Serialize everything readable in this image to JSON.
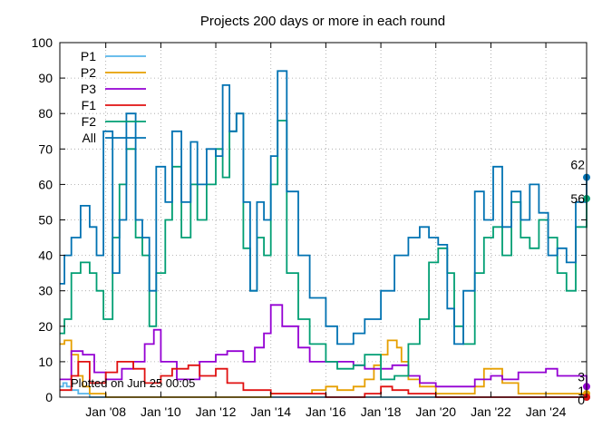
{
  "chart_data": {
    "type": "line",
    "title": "Projects 200 days or more in each round",
    "xlabel": "",
    "ylabel": "",
    "xlim": [
      "2006-05-01",
      "2025-06-25"
    ],
    "ylim": [
      0,
      100
    ],
    "y_ticks": [
      0,
      10,
      20,
      30,
      40,
      50,
      60,
      70,
      80,
      90,
      100
    ],
    "x_ticks": [
      {
        "date": "2008-01-01",
        "label": "Jan '08"
      },
      {
        "date": "2010-01-01",
        "label": "Jan '10"
      },
      {
        "date": "2012-01-01",
        "label": "Jan '12"
      },
      {
        "date": "2014-01-01",
        "label": "Jan '14"
      },
      {
        "date": "2016-01-01",
        "label": "Jan '16"
      },
      {
        "date": "2018-01-01",
        "label": "Jan '18"
      },
      {
        "date": "2020-01-01",
        "label": "Jan '20"
      },
      {
        "date": "2022-01-01",
        "label": "Jan '22"
      },
      {
        "date": "2024-01-01",
        "label": "Jan '24"
      }
    ],
    "grid": true,
    "legend_position": "top-left",
    "annotation": "Plotted on Jun 25 00:05",
    "series": [
      {
        "name": "P1",
        "color": "#56b4e9",
        "end_label": "",
        "x": [
          "2006-05-01",
          "2006-06-15",
          "2006-08-01",
          "2006-10-01",
          "2007-01-01",
          "2007-06-01",
          "2008-01-01",
          "2010-01-01",
          "2012-01-01",
          "2014-01-01",
          "2016-01-01",
          "2018-01-01",
          "2020-01-01",
          "2022-01-01",
          "2024-01-01",
          "2025-06-25"
        ],
        "y": [
          3,
          4,
          3,
          2,
          1,
          0,
          0,
          0,
          0,
          0,
          0,
          0,
          0,
          0,
          0,
          0
        ]
      },
      {
        "name": "P2",
        "color": "#e69f00",
        "end_label": "1",
        "x": [
          "2006-05-01",
          "2006-07-01",
          "2006-10-01",
          "2007-01-01",
          "2007-03-01",
          "2007-06-01",
          "2008-01-01",
          "2010-01-01",
          "2012-01-01",
          "2014-01-01",
          "2015-01-01",
          "2015-07-01",
          "2016-01-01",
          "2016-06-01",
          "2017-01-01",
          "2017-06-01",
          "2017-10-01",
          "2018-01-01",
          "2018-04-01",
          "2018-08-01",
          "2018-10-01",
          "2019-01-01",
          "2019-06-01",
          "2020-01-01",
          "2021-01-01",
          "2021-06-01",
          "2021-10-01",
          "2022-01-01",
          "2022-06-01",
          "2023-01-01",
          "2024-01-01",
          "2024-06-01",
          "2025-06-25"
        ],
        "y": [
          15,
          16,
          12,
          6,
          3,
          1,
          0,
          0,
          0,
          1,
          1,
          2,
          3,
          2,
          3,
          5,
          9,
          12,
          16,
          14,
          10,
          5,
          3,
          1,
          1,
          3,
          8,
          8,
          4,
          1,
          1,
          1,
          1
        ]
      },
      {
        "name": "P3",
        "color": "#9400d3",
        "end_label": "3",
        "x": [
          "2006-05-01",
          "2006-10-01",
          "2007-03-01",
          "2007-08-01",
          "2008-01-01",
          "2008-08-01",
          "2009-01-01",
          "2009-06-01",
          "2009-10-01",
          "2010-01-01",
          "2010-08-01",
          "2011-01-01",
          "2011-06-01",
          "2012-01-01",
          "2012-06-01",
          "2013-01-01",
          "2013-06-01",
          "2013-10-01",
          "2014-01-01",
          "2014-06-01",
          "2015-01-01",
          "2015-06-01",
          "2016-01-01",
          "2016-08-01",
          "2017-01-01",
          "2017-06-01",
          "2018-01-01",
          "2018-06-01",
          "2019-01-01",
          "2019-06-01",
          "2020-01-01",
          "2021-01-01",
          "2021-06-01",
          "2022-01-01",
          "2022-06-01",
          "2023-01-01",
          "2023-06-01",
          "2024-01-01",
          "2024-06-01",
          "2025-06-25"
        ],
        "y": [
          5,
          13,
          12,
          7,
          5,
          8,
          10,
          15,
          19,
          10,
          5,
          5,
          10,
          12,
          13,
          10,
          14,
          18,
          26,
          20,
          14,
          10,
          10,
          10,
          9,
          8,
          8,
          9,
          6,
          4,
          3,
          3,
          5,
          6,
          5,
          7,
          7,
          8,
          6,
          3
        ]
      },
      {
        "name": "F1",
        "color": "#e01010",
        "end_label": "0",
        "x": [
          "2006-05-01",
          "2006-10-01",
          "2007-01-01",
          "2007-06-01",
          "2008-01-01",
          "2008-06-01",
          "2009-01-01",
          "2009-06-01",
          "2010-01-01",
          "2010-06-01",
          "2011-01-01",
          "2011-06-01",
          "2012-01-01",
          "2012-06-01",
          "2013-01-01",
          "2014-01-01",
          "2016-01-01",
          "2017-06-01",
          "2018-01-01",
          "2018-06-01",
          "2019-01-01",
          "2019-06-01",
          "2020-01-01",
          "2021-01-01",
          "2022-01-01",
          "2023-01-01",
          "2024-01-01",
          "2024-06-01",
          "2025-06-25"
        ],
        "y": [
          2,
          6,
          10,
          4,
          7,
          10,
          8,
          4,
          6,
          8,
          9,
          6,
          8,
          4,
          2,
          1,
          0,
          1,
          3,
          2,
          1,
          1,
          0,
          0,
          0,
          0,
          0,
          0,
          0
        ]
      },
      {
        "name": "F2",
        "color": "#009e73",
        "end_label": "56",
        "x": [
          "2006-05-01",
          "2006-07-01",
          "2006-10-01",
          "2007-02-01",
          "2007-06-01",
          "2007-09-01",
          "2007-12-01",
          "2008-04-01",
          "2008-07-01",
          "2008-10-01",
          "2009-02-01",
          "2009-05-01",
          "2009-08-01",
          "2009-11-01",
          "2010-03-01",
          "2010-06-01",
          "2010-10-01",
          "2011-02-01",
          "2011-05-01",
          "2011-09-01",
          "2012-01-01",
          "2012-04-01",
          "2012-07-01",
          "2012-10-01",
          "2013-01-01",
          "2013-04-01",
          "2013-07-01",
          "2013-10-01",
          "2014-01-01",
          "2014-04-01",
          "2014-08-01",
          "2015-01-01",
          "2015-06-01",
          "2016-01-01",
          "2016-06-01",
          "2017-01-01",
          "2017-06-01",
          "2018-01-01",
          "2018-07-01",
          "2019-01-01",
          "2019-06-01",
          "2019-10-01",
          "2020-02-01",
          "2020-06-01",
          "2020-09-01",
          "2021-01-01",
          "2021-06-01",
          "2021-10-01",
          "2022-02-01",
          "2022-06-01",
          "2022-10-01",
          "2023-02-01",
          "2023-06-01",
          "2023-10-01",
          "2024-02-01",
          "2024-06-01",
          "2024-10-01",
          "2025-02-01",
          "2025-06-25"
        ],
        "y": [
          18,
          22,
          35,
          38,
          35,
          30,
          22,
          45,
          60,
          70,
          45,
          40,
          20,
          35,
          50,
          65,
          45,
          60,
          50,
          60,
          70,
          62,
          75,
          80,
          42,
          30,
          45,
          40,
          60,
          78,
          35,
          22,
          15,
          10,
          8,
          9,
          12,
          5,
          6,
          15,
          22,
          38,
          42,
          35,
          20,
          15,
          35,
          45,
          48,
          40,
          55,
          45,
          42,
          50,
          45,
          35,
          30,
          48,
          56
        ]
      },
      {
        "name": "All",
        "color": "#0072b2",
        "end_label": "62",
        "x": [
          "2006-05-01",
          "2006-07-01",
          "2006-10-01",
          "2007-02-01",
          "2007-06-01",
          "2007-09-01",
          "2007-12-01",
          "2008-04-01",
          "2008-07-01",
          "2008-10-01",
          "2009-02-01",
          "2009-05-01",
          "2009-08-01",
          "2009-11-01",
          "2010-03-01",
          "2010-06-01",
          "2010-10-01",
          "2011-02-01",
          "2011-05-01",
          "2011-09-01",
          "2012-01-01",
          "2012-04-01",
          "2012-07-01",
          "2012-10-01",
          "2013-01-01",
          "2013-04-01",
          "2013-07-01",
          "2013-10-01",
          "2014-01-01",
          "2014-04-01",
          "2014-08-01",
          "2015-01-01",
          "2015-06-01",
          "2016-01-01",
          "2016-06-01",
          "2017-01-01",
          "2017-06-01",
          "2018-01-01",
          "2018-07-01",
          "2019-01-01",
          "2019-06-01",
          "2019-10-01",
          "2020-02-01",
          "2020-06-01",
          "2020-09-01",
          "2021-01-01",
          "2021-06-01",
          "2021-10-01",
          "2022-02-01",
          "2022-06-01",
          "2022-10-01",
          "2023-02-01",
          "2023-06-01",
          "2023-10-01",
          "2024-02-01",
          "2024-06-01",
          "2024-10-01",
          "2025-02-01",
          "2025-06-25"
        ],
        "y": [
          32,
          40,
          45,
          54,
          48,
          40,
          75,
          35,
          50,
          80,
          50,
          45,
          30,
          65,
          55,
          75,
          55,
          72,
          60,
          70,
          68,
          88,
          75,
          80,
          55,
          30,
          55,
          50,
          68,
          92,
          58,
          40,
          28,
          20,
          15,
          18,
          22,
          30,
          40,
          45,
          48,
          45,
          43,
          25,
          15,
          30,
          58,
          50,
          65,
          48,
          58,
          50,
          60,
          52,
          40,
          42,
          38,
          55,
          62
        ]
      }
    ]
  }
}
